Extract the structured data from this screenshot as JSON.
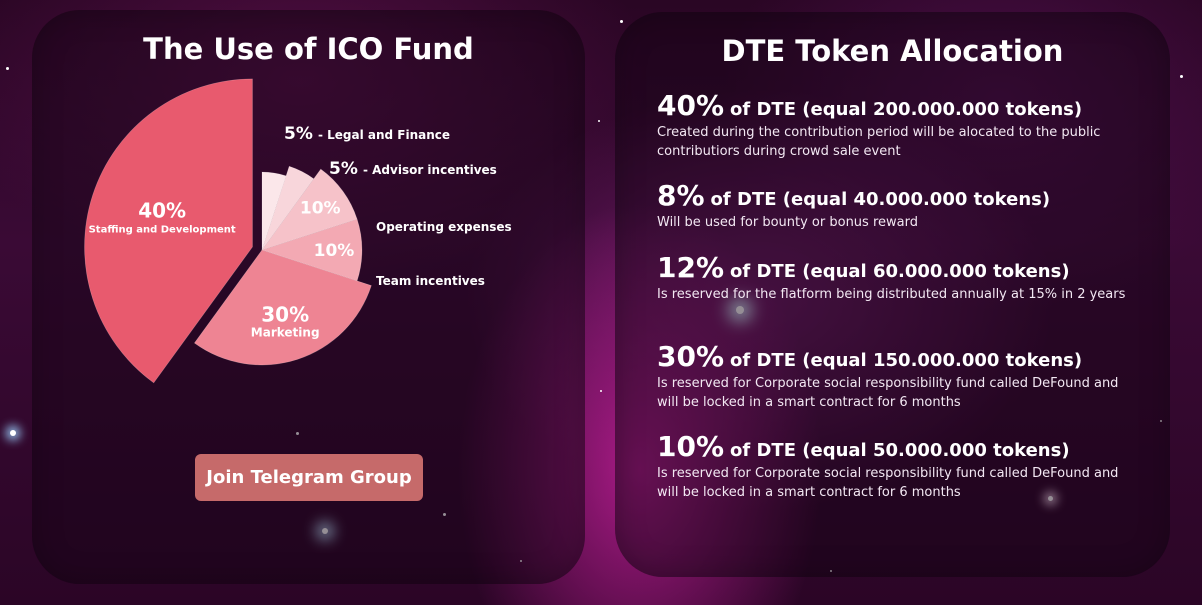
{
  "left_panel": {
    "title": "The Use of ICO Fund",
    "button_label": "Join Telegram Group",
    "slices": [
      {
        "percent": "40%",
        "label": "Staffing and Development",
        "value": 40,
        "color": "#e85a6e"
      },
      {
        "percent": "30%",
        "label": "Marketing",
        "value": 30,
        "color": "#ee8493"
      },
      {
        "percent": "10%",
        "label": "Team incentives",
        "value": 10,
        "color": "#f3a9b3"
      },
      {
        "percent": "10%",
        "label": "Operating expenses",
        "value": 10,
        "color": "#f6c2c9"
      },
      {
        "percent": "5%",
        "label": "Advisor incentives",
        "value": 5,
        "color": "#f8d6db"
      },
      {
        "percent": "5%",
        "label": "Legal and Finance",
        "value": 5,
        "color": "#fbe7ea"
      }
    ],
    "callouts": {
      "legal": {
        "percent": "5%",
        "text": "- Legal and Finance"
      },
      "advisor": {
        "percent": "5%",
        "text": "- Advisor incentives"
      },
      "operating": {
        "text": "Operating expenses"
      },
      "team": {
        "text": "Team incentives"
      }
    }
  },
  "right_panel": {
    "title": "DTE Token Allocation",
    "allocations": [
      {
        "percent": "40%",
        "headline": "of DTE (equal 200.000.000 tokens)",
        "description": "Created during the contribution period will be alocated to the public contributiors during crowd sale event"
      },
      {
        "percent": "8%",
        "headline": "of DTE (equal 40.000.000 tokens)",
        "description": "Will be used for bounty or bonus reward"
      },
      {
        "percent": "12%",
        "headline": "of DTE (equal 60.000.000 tokens)",
        "description": "Is reserved for the flatform being distributed annually at 15% in 2 years"
      },
      {
        "percent": "30%",
        "headline": "of DTE (equal 150.000.000 tokens)",
        "description": "Is reserved for Corporate social responsibility fund called DeFound and will be locked in a smart contract for 6 months"
      },
      {
        "percent": "10%",
        "headline": "of DTE (equal 50.000.000 tokens)",
        "description": "Is reserved for Corporate social responsibility fund called DeFound and will be locked in a smart contract for 6 months"
      }
    ]
  },
  "colors": {
    "button": "#c66a6a",
    "accent": "#e85a6e"
  }
}
